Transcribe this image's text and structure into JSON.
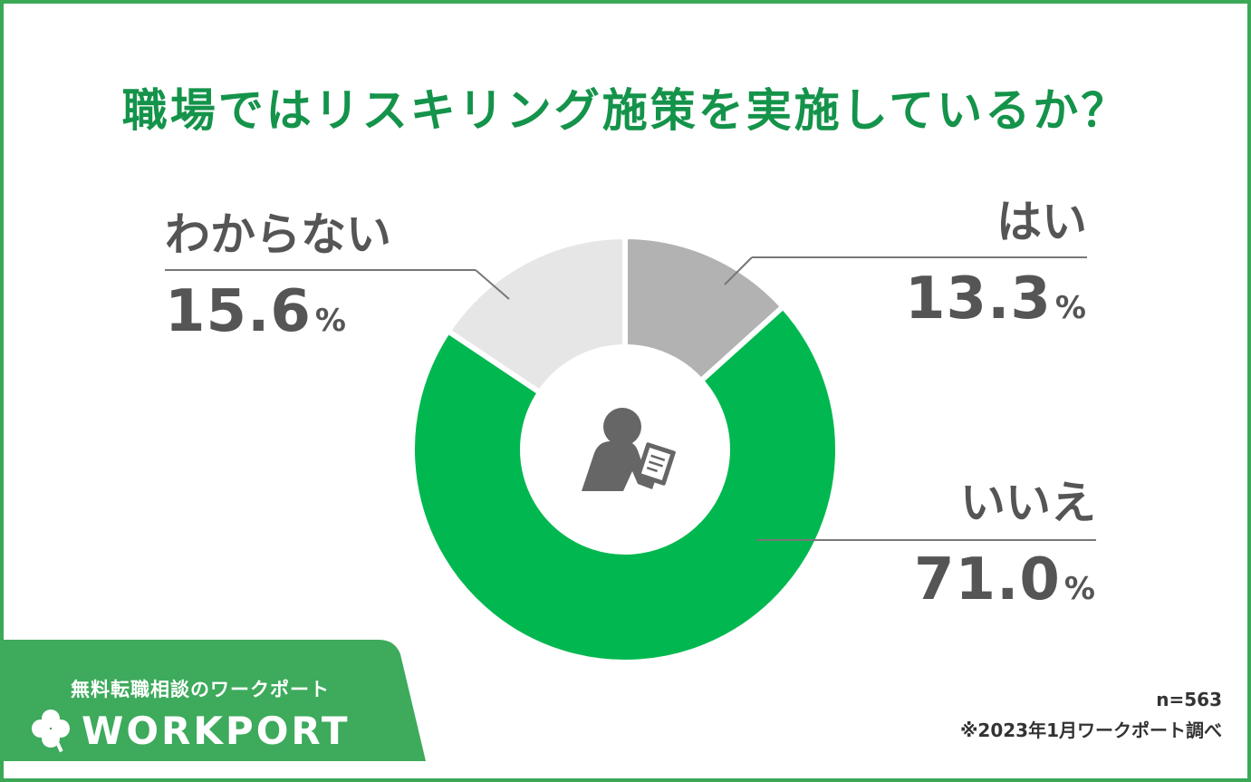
{
  "title": "職場ではリスキリング施策を実施しているか？",
  "chart_data": {
    "type": "pie",
    "categories": [
      "はい",
      "いいえ",
      "わからない"
    ],
    "values": [
      13.3,
      71.0,
      15.6
    ],
    "unit": "%",
    "colors": [
      "#b2b2b2",
      "#00b84f",
      "#e6e6e6"
    ],
    "labels": [
      {
        "name": "はい",
        "value": "13.3"
      },
      {
        "name": "いいえ",
        "value": "71.0"
      },
      {
        "name": "わからない",
        "value": "15.6"
      }
    ],
    "percent_sign": "%"
  },
  "notes": {
    "sample": "n=563",
    "source": "※2023年1月ワークポート調べ"
  },
  "brand": {
    "tagline": "無料転職相談のワークポート",
    "logo_text": "WORKPORT",
    "color": "#3daa5c"
  },
  "icons": {
    "center": "person-with-clipboard-icon",
    "logo": "clover-icon"
  }
}
